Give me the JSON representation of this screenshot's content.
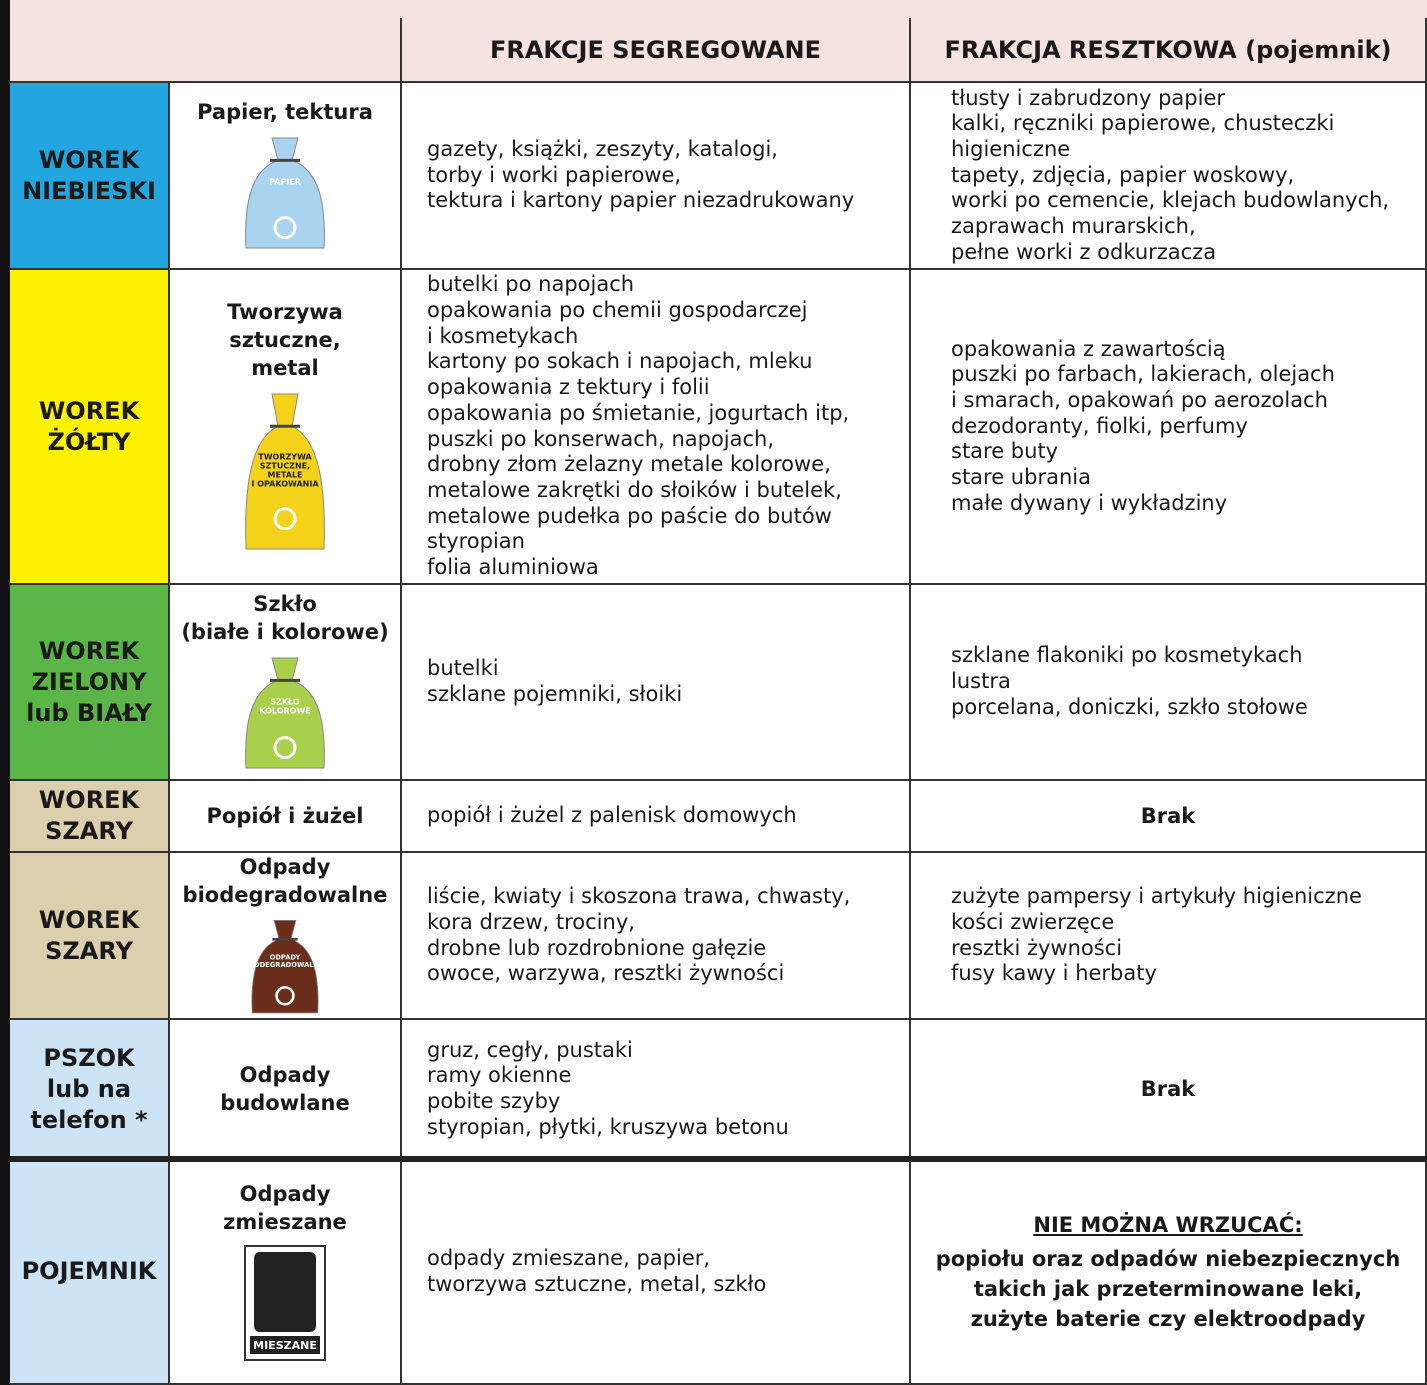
{
  "columns": [
    "FRAKCJE SEGREGOWANE",
    "FRAKCJA RESZTKOWA (pojemnik)"
  ],
  "rows": [
    {
      "bin": [
        "WOREK",
        "NIEBIESKI"
      ],
      "category": [
        "Papier, tektura"
      ],
      "bag_label": [
        "PAPIER"
      ],
      "segregated": [
        "gazety, książki, zeszyty, katalogi,",
        "torby i worki papierowe,",
        "tektura i kartony papier niezadrukowany"
      ],
      "residual": [
        "tłusty i zabrudzony papier",
        "kalki, ręczniki papierowe, chusteczki",
        "higieniczne",
        "tapety, zdjęcia, papier woskowy,",
        "worki po cemencie, klejach budowlanych,",
        "zaprawach murarskich,",
        "pełne worki z odkurzacza"
      ]
    },
    {
      "bin": [
        "WOREK",
        "ŻÓŁTY"
      ],
      "category": [
        "Tworzywa",
        "sztuczne,",
        "metal"
      ],
      "bag_label": [
        "TWORZYWA",
        "SZTUCZNE,",
        "METALE",
        "I OPAKOWANIA"
      ],
      "segregated": [
        "butelki po napojach",
        "opakowania po chemii gospodarczej",
        "i kosmetykach",
        "kartony po sokach i napojach, mleku",
        "opakowania z tektury i folii",
        "opakowania po śmietanie, jogurtach itp,",
        "puszki po konserwach, napojach,",
        "drobny złom żelazny metale kolorowe,",
        "metalowe zakrętki do słoików i butelek,",
        "metalowe pudełka po paście do butów",
        "styropian",
        "folia aluminiowa"
      ],
      "residual": [
        "opakowania z zawartością",
        "puszki po farbach, lakierach, olejach",
        "i smarach, opakowań po aerozolach",
        "dezodoranty, fiolki, perfumy",
        "stare buty",
        "stare ubrania",
        "małe dywany i wykładziny"
      ]
    },
    {
      "bin": [
        "WOREK",
        "ZIELONY",
        "lub BIAŁY"
      ],
      "category": [
        "Szkło",
        "(białe i kolorowe)"
      ],
      "bag_label": [
        "SZKŁO",
        "KOLOROWE"
      ],
      "segregated": [
        "butelki",
        "szklane pojemniki, słoiki"
      ],
      "residual": [
        "szklane flakoniki po kosmetykach",
        "lustra",
        "porcelana, doniczki, szkło stołowe"
      ]
    },
    {
      "bin": [
        "WOREK",
        "SZARY"
      ],
      "category": [
        "Popiół i żużel"
      ],
      "segregated": [
        "popiół i żużel z palenisk domowych"
      ],
      "residual": [
        "Brak"
      ]
    },
    {
      "bin": [
        "WOREK",
        "SZARY"
      ],
      "category": [
        "Odpady",
        "biodegradowalne"
      ],
      "bag_label": [
        "ODPADY",
        "BIODEGRADOWALNE"
      ],
      "segregated": [
        "liście, kwiaty i skoszona trawa, chwasty,",
        "kora drzew, trociny,",
        "drobne lub rozdrobnione gałęzie",
        "owoce, warzywa, resztki żywności"
      ],
      "residual": [
        "zużyte pampersy i artykuły higieniczne",
        "kości zwierzęce",
        "resztki żywności",
        "fusy kawy i herbaty"
      ]
    },
    {
      "bin": [
        "PSZOK",
        "lub na",
        "telefon *"
      ],
      "category": [
        "Odpady",
        "budowlane"
      ],
      "segregated": [
        "gruz, cegły, pustaki",
        "ramy okienne",
        "pobite szyby",
        "styropian, płytki, kruszywa betonu"
      ],
      "residual": [
        "Brak"
      ]
    },
    {
      "bin": [
        "POJEMNIK"
      ],
      "category": [
        "Odpady",
        "zmieszane"
      ],
      "bag_label": [
        "MIESZANE"
      ],
      "segregated": [
        "odpady zmieszane, papier,",
        "tworzywa sztuczne, metal, szkło"
      ],
      "residual_heading": "NIE MOŻNA WRZUCAĆ:",
      "residual": [
        "popiołu oraz odpadów niebezpiecznych",
        "takich jak przeterminowane leki,",
        "zużyte baterie czy elektroodpady"
      ]
    }
  ]
}
